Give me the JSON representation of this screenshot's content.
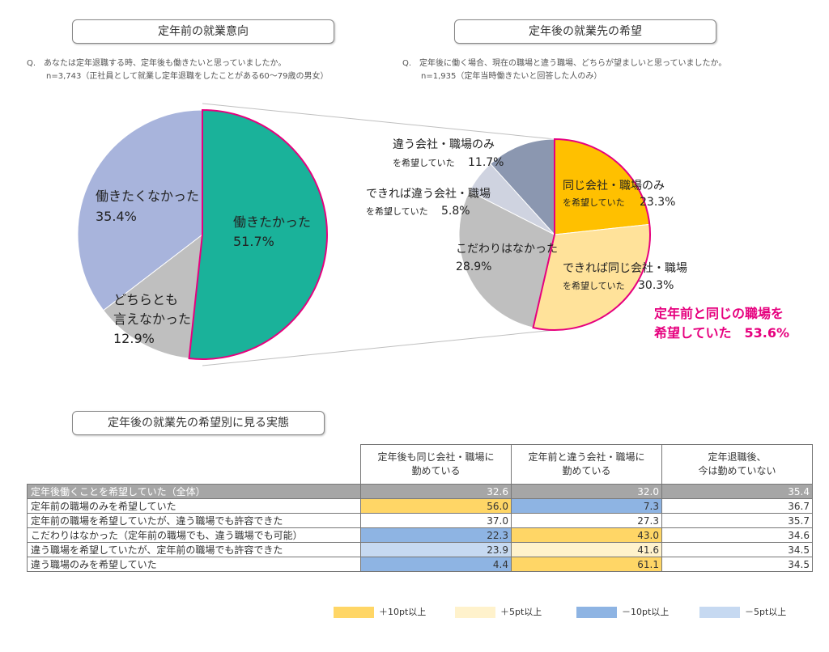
{
  "left_panel": {
    "title": "定年前の就業意向",
    "question": "Q.　あなたは定年退職する時、定年後も働きたいと思っていましたか。",
    "sample": "n=3,743（正社員として就業し定年退職をしたことがある60～79歳の男女）"
  },
  "right_panel": {
    "title": "定年後の就業先の希望",
    "question": "Q.　定年後に働く場合、現在の職場と違う職場、どちらが望ましいと思っていましたか。",
    "sample": "n=1,935（定年当時働きたいと回答した人のみ）",
    "highlight_line1": "定年前と同じの職場を",
    "highlight_line2": "希望していた　53.6%"
  },
  "chart_data": [
    {
      "type": "pie",
      "slices": [
        {
          "label": "働きたかった",
          "value": 51.7,
          "value_text": "51.7%",
          "color": "#1ab29a"
        },
        {
          "label": "どちらとも言えなかった",
          "label_line1": "どちらとも",
          "label_line2": "言えなかった",
          "value": 12.9,
          "value_text": "12.9%",
          "color": "#bfbfbf"
        },
        {
          "label": "働きたくなかった",
          "value": 35.4,
          "value_text": "35.4%",
          "color": "#a8b4dc"
        }
      ]
    },
    {
      "type": "pie",
      "slices": [
        {
          "label": "同じ会社・職場のみを希望していた",
          "label_line1": "同じ会社・職場のみ",
          "label_line2": "を希望していた",
          "value": 23.3,
          "value_text": "23.3%",
          "color": "#ffc000"
        },
        {
          "label": "できれば同じ会社・職場を希望していた",
          "label_line1": "できれば同じ会社・職場",
          "label_line2": "を希望していた",
          "value": 30.3,
          "value_text": "30.3%",
          "color": "#ffe29a"
        },
        {
          "label": "こだわりはなかった",
          "value": 28.9,
          "value_text": "28.9%",
          "color": "#bfbfbf"
        },
        {
          "label": "できれば違う会社・職場を希望していた",
          "label_line1": "できれば違う会社・職場",
          "label_line2": "を希望していた",
          "value": 5.8,
          "value_text": "5.8%",
          "color": "#cfd3e0"
        },
        {
          "label": "違う会社・職場のみを希望していた",
          "label_line1": "違う会社・職場のみ",
          "label_line2": "を希望していた",
          "value": 11.7,
          "value_text": "11.7%",
          "color": "#8b97b0"
        }
      ]
    },
    {
      "type": "table",
      "title": "定年後の就業先の希望別に見る実態",
      "columns": [
        "定年後も同じ会社・職場に勤めている",
        "定年前と違う会社・職場に勤めている",
        "定年退職後、今は勤めていない"
      ],
      "column_lines": [
        [
          "定年後も同じ会社・職場に",
          "勤めている"
        ],
        [
          "定年前と違う会社・職場に",
          "勤めている"
        ],
        [
          "定年退職後、",
          "今は勤めていない"
        ]
      ],
      "rows": [
        {
          "label": "定年後働くことを希望していた（全体）",
          "values": [
            "32.6",
            "32.0",
            "35.4"
          ],
          "shade": [
            "total",
            "total",
            "total"
          ]
        },
        {
          "label": "定年前の職場のみを希望していた",
          "values": [
            "56.0",
            "7.3",
            "36.7"
          ],
          "shade": [
            "p10",
            "m10",
            "none"
          ]
        },
        {
          "label": "定年前の職場を希望していたが、違う職場でも許容できた",
          "values": [
            "37.0",
            "27.3",
            "35.7"
          ],
          "shade": [
            "none",
            "none",
            "none"
          ]
        },
        {
          "label": "こだわりはなかった（定年前の職場でも、違う職場でも可能）",
          "values": [
            "22.3",
            "43.0",
            "34.6"
          ],
          "shade": [
            "m10",
            "p10",
            "none"
          ]
        },
        {
          "label": "違う職場を希望していたが、定年前の職場でも許容できた",
          "values": [
            "23.9",
            "41.6",
            "34.5"
          ],
          "shade": [
            "m5",
            "p5",
            "none"
          ]
        },
        {
          "label": "違う職場のみを希望していた",
          "values": [
            "4.4",
            "61.1",
            "34.5"
          ],
          "shade": [
            "m10",
            "p10",
            "none"
          ]
        }
      ]
    }
  ],
  "shade_colors": {
    "total": "#a6a6a6",
    "p10": "#ffd666",
    "p5": "#fff2cc",
    "m10": "#8eb4e3",
    "m5": "#c6d9f1",
    "none": "#ffffff"
  },
  "legend": [
    {
      "key": "p10",
      "label": "＋10pt以上"
    },
    {
      "key": "p5",
      "label": "＋5pt以上"
    },
    {
      "key": "m10",
      "label": "－10pt以上"
    },
    {
      "key": "m5",
      "label": "－5pt以上"
    }
  ]
}
